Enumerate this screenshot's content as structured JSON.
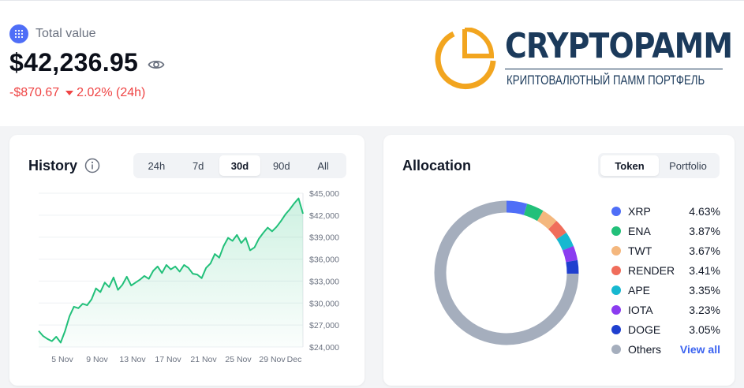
{
  "summary": {
    "label": "Total value",
    "value": "$42,236.95",
    "change_abs": "-$870.67",
    "change_pct": "2.02% (24h)",
    "accent": "#4f6ef7",
    "negative_color": "#ef4444"
  },
  "logo": {
    "brand": "CRYPTOPAMM",
    "subtitle": "КРИПТОВАЛЮТНЫЙ ПАММ ПОРТФЕЛЬ",
    "colors": {
      "text": "#1b3a5b",
      "ring": "#f2a51f"
    }
  },
  "history": {
    "title": "History",
    "ranges": [
      "24h",
      "7d",
      "30d",
      "90d",
      "All"
    ],
    "active_range": "30d"
  },
  "allocation": {
    "title": "Allocation",
    "tabs": [
      "Token",
      "Portfolio"
    ],
    "active_tab": "Token",
    "view_all_label": "View all"
  },
  "chart_data": [
    {
      "type": "area",
      "title": "History",
      "x_tick_labels": [
        "5 Nov",
        "9 Nov",
        "13 Nov",
        "17 Nov",
        "21 Nov",
        "25 Nov",
        "29 Nov",
        "Dec"
      ],
      "y_tick_labels": [
        "$45,000",
        "$42,000",
        "$39,000",
        "$36,000",
        "$33,000",
        "$30,000",
        "$27,000",
        "$24,000"
      ],
      "ylim": [
        24000,
        45000
      ],
      "x_range_days": [
        3,
        33
      ],
      "color": "#22c07a",
      "series": [
        {
          "x": [
            3,
            3.5,
            4,
            4.5,
            5,
            5.5,
            6,
            6.5,
            7,
            7.5,
            8,
            8.5,
            9,
            9.5,
            10,
            10.5,
            11,
            11.5,
            12,
            12.5,
            13,
            13.5,
            14,
            14.5,
            15,
            15.5,
            16,
            16.5,
            17,
            17.5,
            18,
            18.5,
            19,
            19.5,
            20,
            20.5,
            21,
            21.5,
            22,
            22.5,
            23,
            23.5,
            24,
            24.5,
            25,
            25.5,
            26,
            26.5,
            27,
            27.5,
            28,
            28.5,
            29,
            29.5,
            30,
            30.5,
            31,
            31.5,
            32,
            32.5,
            33
          ],
          "values": [
            26200,
            25500,
            25100,
            24800,
            25400,
            24600,
            26200,
            28200,
            29500,
            29300,
            29900,
            29700,
            30500,
            32000,
            31500,
            32800,
            32200,
            33500,
            31800,
            32500,
            33600,
            32400,
            32800,
            33200,
            33700,
            33300,
            34400,
            35000,
            34100,
            35200,
            34600,
            35000,
            34300,
            35200,
            34800,
            34000,
            33900,
            33400,
            34800,
            35400,
            36700,
            36200,
            37800,
            38900,
            38500,
            39300,
            38200,
            38900,
            37200,
            37600,
            38800,
            39600,
            40300,
            39800,
            40400,
            41200,
            42100,
            42800,
            43600,
            44300,
            42200
          ]
        }
      ]
    },
    {
      "type": "pie",
      "title": "Allocation",
      "donut": true,
      "labels": [
        "XRP",
        "ENA",
        "TWT",
        "RENDER",
        "APE",
        "IOTA",
        "DOGE",
        "Others"
      ],
      "value_labels": [
        "4.63%",
        "3.87%",
        "3.67%",
        "3.41%",
        "3.35%",
        "3.23%",
        "3.05%",
        ""
      ],
      "values": [
        4.63,
        3.87,
        3.67,
        3.41,
        3.35,
        3.23,
        3.05,
        74.79
      ],
      "colors": [
        "#4f6ef7",
        "#22c07a",
        "#f4b77e",
        "#f06d5b",
        "#17b8d0",
        "#8b3cf0",
        "#1f3fcf",
        "#a5aebd"
      ]
    }
  ]
}
